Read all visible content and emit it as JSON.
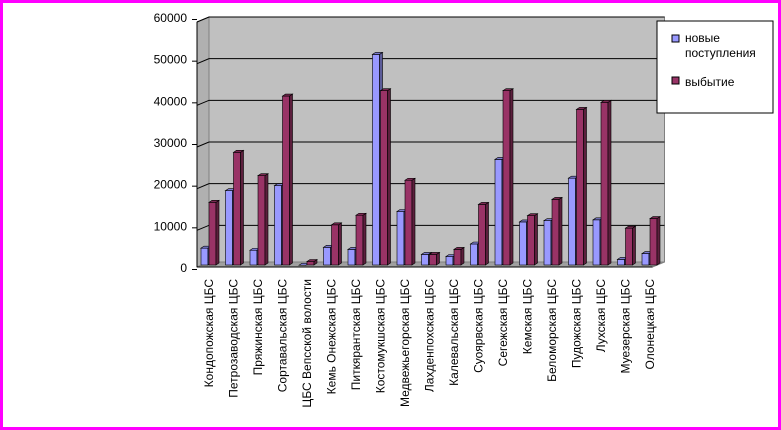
{
  "chart_data": {
    "type": "bar",
    "title": "",
    "xlabel": "",
    "ylabel": "",
    "ylim": [
      0,
      60000
    ],
    "yticks": [
      "0",
      "10000",
      "20000",
      "30000",
      "40000",
      "50000",
      "60000"
    ],
    "grid": true,
    "legend_position": "right",
    "categories": [
      "Кондопожская ЦБС",
      "Петрозаводская ЦБС",
      "Пряжинская ЦБС",
      "Сортавальская ЦБС",
      "ЦБС Вепсской волости",
      "Кемь Онежская ЦБС",
      "Питкярантская ЦБС",
      "Костомукшская ЦБС",
      "Медвежьегорская ЦБС",
      "Лахденпохская ЦБС",
      "Калевальская ЦБС",
      "Суоярвская ЦБС",
      "Сегежская ЦБС",
      "Кемская ЦБС",
      "Беломорская ЦБС",
      "Пудожская ЦБС",
      "Лухская ЦБС",
      "Муезерская ЦБС",
      "Олонецкая ЦБС"
    ],
    "series": [
      {
        "name": "новые поступления",
        "color": "#9999ff",
        "values": [
          5000,
          18800,
          4500,
          20000,
          900,
          5200,
          4700,
          51500,
          13800,
          3500,
          3000,
          6000,
          26300,
          11300,
          11600,
          21800,
          11800,
          2300,
          3700
        ]
      },
      {
        "name": "выбытие",
        "color": "#993366",
        "values": [
          16000,
          28000,
          22400,
          41500,
          1800,
          10600,
          12900,
          42800,
          21300,
          3500,
          4700,
          15500,
          42800,
          12800,
          16700,
          38300,
          40000,
          9800,
          12100
        ]
      }
    ]
  }
}
